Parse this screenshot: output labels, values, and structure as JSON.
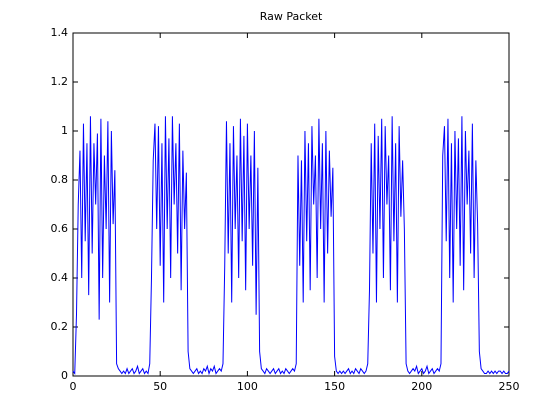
{
  "chart_data": {
    "type": "line",
    "title": "Raw Packet",
    "x": [
      0,
      1,
      2,
      3,
      4,
      5,
      6,
      7,
      8,
      9,
      10,
      11,
      12,
      13,
      14,
      15,
      16,
      17,
      18,
      19,
      20,
      21,
      22,
      23,
      24,
      25,
      26,
      27,
      28,
      29,
      30,
      31,
      32,
      33,
      34,
      35,
      36,
      37,
      38,
      39,
      40,
      41,
      42,
      43,
      44,
      45,
      46,
      47,
      48,
      49,
      50,
      51,
      52,
      53,
      54,
      55,
      56,
      57,
      58,
      59,
      60,
      61,
      62,
      63,
      64,
      65,
      66,
      67,
      68,
      69,
      70,
      71,
      72,
      73,
      74,
      75,
      76,
      77,
      78,
      79,
      80,
      81,
      82,
      83,
      84,
      85,
      86,
      87,
      88,
      89,
      90,
      91,
      92,
      93,
      94,
      95,
      96,
      97,
      98,
      99,
      100,
      101,
      102,
      103,
      104,
      105,
      106,
      107,
      108,
      109,
      110,
      111,
      112,
      113,
      114,
      115,
      116,
      117,
      118,
      119,
      120,
      121,
      122,
      123,
      124,
      125,
      126,
      127,
      128,
      129,
      130,
      131,
      132,
      133,
      134,
      135,
      136,
      137,
      138,
      139,
      140,
      141,
      142,
      143,
      144,
      145,
      146,
      147,
      148,
      149,
      150,
      151,
      152,
      153,
      154,
      155,
      156,
      157,
      158,
      159,
      160,
      161,
      162,
      163,
      164,
      165,
      166,
      167,
      168,
      169,
      170,
      171,
      172,
      173,
      174,
      175,
      176,
      177,
      178,
      179,
      180,
      181,
      182,
      183,
      184,
      185,
      186,
      187,
      188,
      189,
      190,
      191,
      192,
      193,
      194,
      195,
      196,
      197,
      198,
      199,
      200,
      201,
      202,
      203,
      204,
      205,
      206,
      207,
      208,
      209,
      210,
      211,
      212,
      213,
      214,
      215,
      216,
      217,
      218,
      219,
      220,
      221,
      222,
      223,
      224,
      225,
      226,
      227,
      228,
      229,
      230,
      231,
      232,
      233,
      234,
      235,
      236,
      237,
      238,
      239,
      240,
      241,
      242,
      243,
      244,
      245,
      246,
      247,
      248,
      249,
      250
    ],
    "series": [
      {
        "color": "#0000ff",
        "values": [
          0.02,
          0.01,
          0.25,
          0.7,
          0.92,
          0.4,
          1.03,
          0.55,
          0.95,
          0.33,
          1.06,
          0.5,
          0.95,
          0.7,
          0.99,
          0.23,
          1.05,
          0.4,
          0.9,
          0.6,
          1.04,
          0.3,
          1.0,
          0.62,
          0.84,
          0.05,
          0.03,
          0.02,
          0.01,
          0.02,
          0.01,
          0.03,
          0.01,
          0.02,
          0.03,
          0.01,
          0.02,
          0.04,
          0.01,
          0.02,
          0.03,
          0.01,
          0.02,
          0.01,
          0.05,
          0.4,
          0.88,
          1.03,
          0.6,
          1.02,
          0.45,
          0.95,
          0.3,
          1.06,
          0.6,
          0.97,
          0.4,
          1.06,
          0.7,
          0.95,
          0.5,
          1.03,
          0.35,
          0.92,
          0.6,
          0.83,
          0.1,
          0.03,
          0.02,
          0.01,
          0.02,
          0.03,
          0.01,
          0.02,
          0.01,
          0.03,
          0.02,
          0.04,
          0.01,
          0.03,
          0.02,
          0.04,
          0.01,
          0.02,
          0.03,
          0.02,
          0.05,
          0.45,
          1.04,
          0.5,
          0.95,
          0.3,
          1.02,
          0.6,
          0.9,
          0.4,
          1.05,
          0.55,
          0.98,
          0.35,
          1.03,
          0.6,
          0.9,
          0.45,
          1.0,
          0.25,
          0.85,
          0.1,
          0.03,
          0.02,
          0.01,
          0.03,
          0.02,
          0.01,
          0.02,
          0.03,
          0.01,
          0.02,
          0.03,
          0.01,
          0.02,
          0.01,
          0.03,
          0.02,
          0.01,
          0.02,
          0.03,
          0.02,
          0.05,
          0.9,
          0.45,
          0.88,
          0.3,
          1.0,
          0.55,
          0.95,
          0.35,
          1.02,
          0.7,
          0.9,
          0.4,
          1.05,
          0.6,
          0.95,
          0.3,
          1.0,
          0.5,
          0.92,
          0.65,
          0.85,
          0.08,
          0.02,
          0.01,
          0.02,
          0.01,
          0.02,
          0.01,
          0.02,
          0.03,
          0.01,
          0.02,
          0.01,
          0.03,
          0.02,
          0.01,
          0.03,
          0.02,
          0.01,
          0.02,
          0.05,
          0.35,
          0.95,
          0.5,
          1.03,
          0.3,
          0.98,
          0.6,
          1.05,
          0.4,
          1.02,
          0.7,
          0.9,
          0.35,
          1.06,
          0.55,
          0.95,
          0.3,
          1.02,
          0.65,
          0.88,
          0.6,
          0.05,
          0.02,
          0.01,
          0.02,
          0.03,
          0.02,
          0.04,
          0.01,
          0.02,
          0.03,
          0.01,
          0.02,
          0.04,
          0.01,
          0.02,
          0.03,
          0.01,
          0.02,
          0.03,
          0.02,
          0.05,
          0.9,
          1.02,
          0.55,
          1.05,
          0.4,
          0.95,
          0.3,
          1.0,
          0.6,
          0.97,
          0.45,
          1.06,
          0.35,
          1.0,
          0.7,
          0.92,
          0.5,
          1.03,
          0.4,
          0.88,
          0.62,
          0.1,
          0.03,
          0.02,
          0.01,
          0.01,
          0.02,
          0.01,
          0.02,
          0.01,
          0.02,
          0.01,
          0.02,
          0.02,
          0.01,
          0.02,
          0.01,
          0.01,
          0.02
        ]
      }
    ],
    "xlim": [
      0,
      250
    ],
    "xticks": [
      0,
      50,
      100,
      150,
      200,
      250
    ],
    "ylim": [
      0,
      1.4
    ],
    "yticks": [
      0,
      0.2,
      0.4,
      0.6,
      0.8,
      1,
      1.2,
      1.4
    ]
  }
}
